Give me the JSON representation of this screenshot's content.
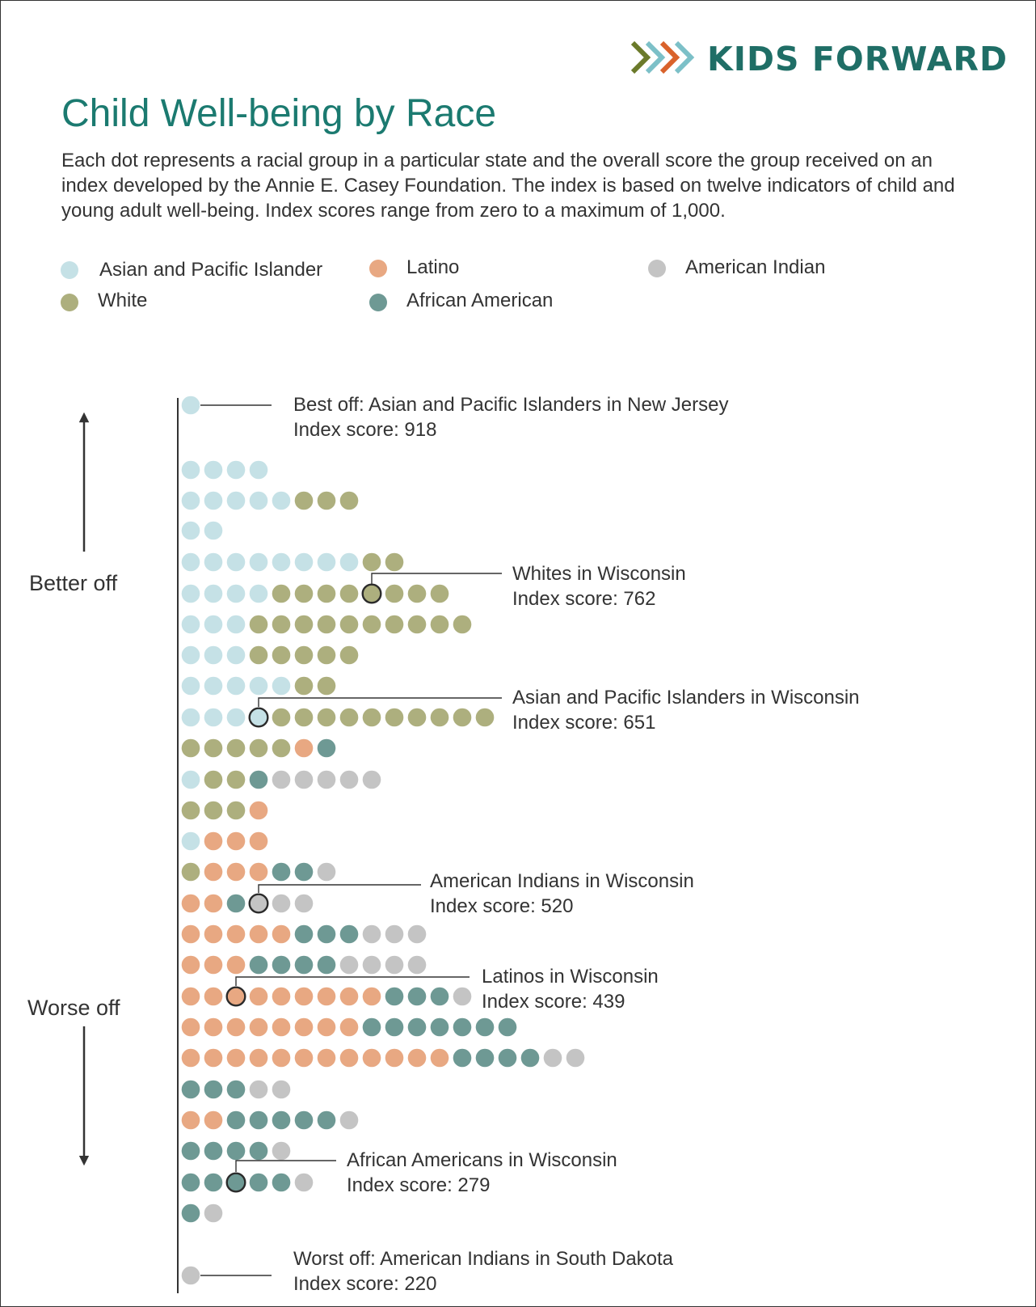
{
  "logo": {
    "text": "KIDS FORWARD",
    "colors": [
      "#6b7a2a",
      "#7cc0c8",
      "#d9622b"
    ]
  },
  "title": "Child Well-being by Race",
  "description": "Each dot represents a racial group in a particular state and the overall score the group received on an index developed by the Annie E. Casey Foundation. The index is based on twelve indicators of child and young adult well-being. Index scores range from zero to a maximum of 1,000.",
  "legend": [
    {
      "key": "A",
      "label": "Asian and Pacific Islander",
      "color": "#c5e1e6"
    },
    {
      "key": "L",
      "label": "Latino",
      "color": "#e8a882"
    },
    {
      "key": "I",
      "label": "American Indian",
      "color": "#c4c4c4"
    },
    {
      "key": "W",
      "label": "White",
      "color": "#adaf7e"
    },
    {
      "key": "B",
      "label": "African American",
      "color": "#6e9994"
    }
  ],
  "labels": {
    "better": "Better off",
    "worse": "Worse off"
  },
  "chart_data": {
    "type": "scatter",
    "encoding": "Rows of dots ordered from highest (top) to lowest (bottom) index score; each dot is one racial group in one state",
    "rows": [
      "A",
      "AAAA",
      "AAAAAWWW",
      "AA",
      "AAAAAAAAWW",
      "AAAAWWWWWWWW",
      "AAAWWWWWWWWWW",
      "AAAWWWWW",
      "AAAAAWW",
      "AAAAWWWWWWWWWW",
      "WWWWWLB",
      "AWWBIIIII",
      "WWWL",
      "ALLL",
      "WLLLBBI",
      "LLBIII",
      "LLLLLBBBIII",
      "LLLBBBBIIII",
      "LLLLLLLLLBBBI",
      "LLLLLLLLBBBBBBB",
      "LLLLLLLLLLLLBBBBII",
      "BBBII",
      "LLBBBBBI",
      "BBBBI",
      "BBBBBI",
      "BI",
      "I"
    ],
    "annotations": [
      {
        "row": 0,
        "col": 0,
        "label": "Best off: Asian and Pacific Islanders in New Jersey",
        "score_text": "Index score: 918",
        "score": 918
      },
      {
        "row": 5,
        "col": 8,
        "label": "Whites in Wisconsin",
        "score_text": "Index score: 762",
        "score": 762
      },
      {
        "row": 9,
        "col": 3,
        "label": "Asian and Pacific Islanders in Wisconsin",
        "score_text": "Index score: 651",
        "score": 651
      },
      {
        "row": 15,
        "col": 3,
        "label": "American Indians in Wisconsin",
        "score_text": "Index score: 520",
        "score": 520
      },
      {
        "row": 18,
        "col": 2,
        "label": "Latinos in Wisconsin",
        "score_text": "Index score: 439",
        "score": 439
      },
      {
        "row": 24,
        "col": 2,
        "label": "African Americans in Wisconsin",
        "score_text": "Index score: 279",
        "score": 279
      },
      {
        "row": 26,
        "col": 0,
        "label": "Worst off: American Indians in South Dakota",
        "score_text": "Index score: 220",
        "score": 220
      }
    ]
  }
}
